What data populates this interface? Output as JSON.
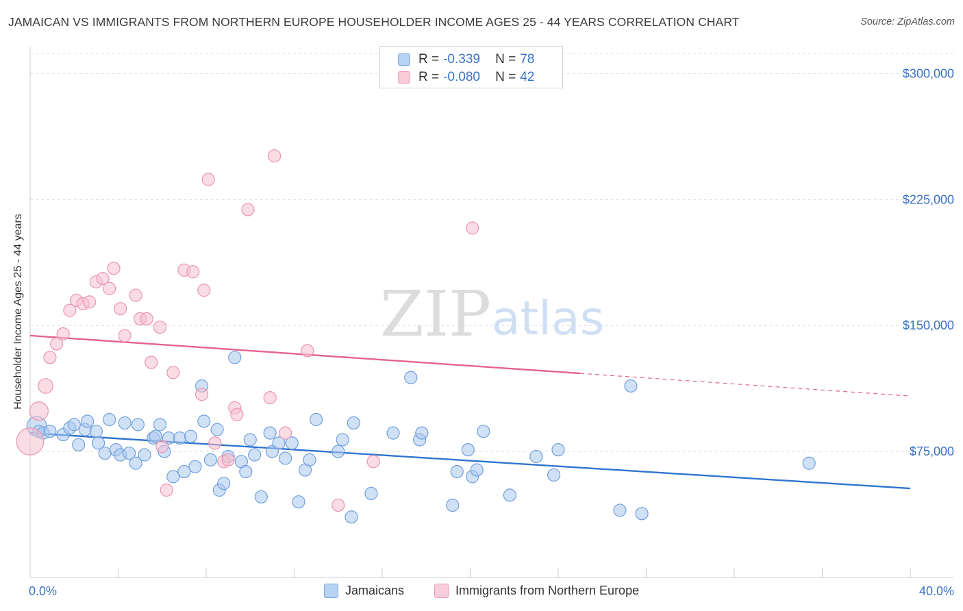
{
  "header": {
    "title": "JAMAICAN VS IMMIGRANTS FROM NORTHERN EUROPE HOUSEHOLDER INCOME AGES 25 - 44 YEARS CORRELATION CHART",
    "source": "Source: ZipAtlas.com"
  },
  "watermark": {
    "zip": "ZIP",
    "atlas": "atlas"
  },
  "legend": {
    "r_label": "R =",
    "n_label": "N =",
    "rows": [
      {
        "r": "-0.339",
        "n": "78"
      },
      {
        "r": "-0.080",
        "n": "42"
      }
    ]
  },
  "colors": {
    "blue_fill": "#a9c8ef",
    "blue_stroke": "#6f9fdc",
    "blue_line": "#2f74cf",
    "pink_fill": "#f6bfd0",
    "pink_stroke": "#eb94b0",
    "pink_line": "#e4638f",
    "axis_text": "#3a72c8"
  },
  "chart_data": {
    "type": "scatter",
    "title": "JAMAICAN VS IMMIGRANTS FROM NORTHERN EUROPE HOUSEHOLDER INCOME AGES 25 - 44 YEARS CORRELATION CHART",
    "xlabel": "",
    "ylabel": "Householder Income Ages 25 - 44 years",
    "xlim": [
      0,
      40
    ],
    "ylim": [
      0,
      312000
    ],
    "x_tick_labels": {
      "min": "0.0%",
      "max": "40.0%"
    },
    "y_ticks": [
      {
        "value": 75000,
        "label": "$75,000"
      },
      {
        "value": 150000,
        "label": "$150,000"
      },
      {
        "value": 225000,
        "label": "$225,000"
      },
      {
        "value": 300000,
        "label": "$300,000"
      }
    ],
    "series": [
      {
        "name": "Jamaicans",
        "r": -0.339,
        "n": 78,
        "trend": {
          "x0": 0,
          "y0": 86000,
          "x1": 40,
          "y1": 53000,
          "dashed_from": null
        },
        "points": [
          [
            0.3,
            90000,
            1.6
          ],
          [
            0.4,
            87000,
            1
          ],
          [
            0.6,
            86000,
            1
          ],
          [
            0.9,
            87000,
            1
          ],
          [
            1.5,
            85000,
            1
          ],
          [
            1.8,
            89000,
            1
          ],
          [
            2.0,
            91000,
            1
          ],
          [
            2.2,
            79000,
            1
          ],
          [
            2.5,
            88000,
            1
          ],
          [
            2.6,
            93000,
            1
          ],
          [
            3.0,
            87000,
            1
          ],
          [
            3.1,
            80000,
            1
          ],
          [
            3.4,
            74000,
            1
          ],
          [
            3.6,
            94000,
            1
          ],
          [
            3.9,
            76000,
            1
          ],
          [
            4.1,
            73000,
            1
          ],
          [
            4.3,
            92000,
            1
          ],
          [
            4.5,
            74000,
            1
          ],
          [
            4.8,
            68000,
            1
          ],
          [
            4.9,
            91000,
            1
          ],
          [
            5.2,
            73000,
            1
          ],
          [
            5.6,
            83000,
            1
          ],
          [
            5.7,
            84000,
            1
          ],
          [
            5.9,
            91000,
            1
          ],
          [
            6.1,
            75000,
            1
          ],
          [
            6.3,
            83000,
            1
          ],
          [
            6.5,
            60000,
            1
          ],
          [
            6.8,
            83000,
            1
          ],
          [
            7.0,
            63000,
            1
          ],
          [
            7.3,
            84000,
            1
          ],
          [
            7.5,
            66000,
            1
          ],
          [
            7.8,
            114000,
            1
          ],
          [
            7.9,
            93000,
            1
          ],
          [
            8.2,
            70000,
            1
          ],
          [
            8.5,
            88000,
            1
          ],
          [
            8.6,
            52000,
            1
          ],
          [
            8.8,
            56000,
            1
          ],
          [
            9.0,
            72000,
            1
          ],
          [
            9.3,
            131000,
            1
          ],
          [
            9.6,
            69000,
            1
          ],
          [
            9.8,
            63000,
            1
          ],
          [
            10.0,
            82000,
            1
          ],
          [
            10.2,
            73000,
            1
          ],
          [
            10.5,
            48000,
            1
          ],
          [
            10.9,
            86000,
            1
          ],
          [
            11.0,
            75000,
            1
          ],
          [
            11.3,
            80000,
            1
          ],
          [
            11.6,
            71000,
            1
          ],
          [
            11.9,
            80000,
            1
          ],
          [
            12.2,
            45000,
            1
          ],
          [
            12.5,
            64000,
            1
          ],
          [
            12.7,
            70000,
            1
          ],
          [
            13.0,
            94000,
            1
          ],
          [
            14.0,
            75000,
            1
          ],
          [
            14.2,
            82000,
            1
          ],
          [
            14.6,
            36000,
            1
          ],
          [
            14.7,
            92000,
            1
          ],
          [
            15.5,
            50000,
            1
          ],
          [
            16.5,
            86000,
            1
          ],
          [
            17.3,
            119000,
            1
          ],
          [
            17.7,
            82000,
            1
          ],
          [
            17.8,
            86000,
            1
          ],
          [
            19.2,
            43000,
            1
          ],
          [
            19.4,
            63000,
            1
          ],
          [
            19.9,
            76000,
            1
          ],
          [
            20.1,
            60000,
            1
          ],
          [
            20.3,
            64000,
            1
          ],
          [
            20.6,
            87000,
            1
          ],
          [
            21.8,
            49000,
            1
          ],
          [
            23.0,
            72000,
            1
          ],
          [
            23.8,
            61000,
            1
          ],
          [
            24.0,
            76000,
            1
          ],
          [
            26.8,
            40000,
            1
          ],
          [
            27.3,
            114000,
            1
          ],
          [
            27.8,
            38000,
            1
          ],
          [
            35.4,
            68000,
            1
          ]
        ]
      },
      {
        "name": "Immigrants from Northern Europe",
        "r": -0.08,
        "n": 42,
        "trend": {
          "x0": 0,
          "y0": 144000,
          "x1": 40,
          "y1": 108000,
          "dashed_from": 25
        },
        "points": [
          [
            0.0,
            81000,
            2.2
          ],
          [
            0.4,
            99000,
            1.5
          ],
          [
            0.7,
            114000,
            1.2
          ],
          [
            0.9,
            131000,
            1
          ],
          [
            1.2,
            139000,
            1
          ],
          [
            1.5,
            145000,
            1
          ],
          [
            1.8,
            159000,
            1
          ],
          [
            2.1,
            165000,
            1
          ],
          [
            2.4,
            163000,
            1
          ],
          [
            2.7,
            164000,
            1
          ],
          [
            3.0,
            176000,
            1
          ],
          [
            3.3,
            178000,
            1
          ],
          [
            3.6,
            172000,
            1
          ],
          [
            3.8,
            184000,
            1
          ],
          [
            4.1,
            160000,
            1
          ],
          [
            4.3,
            144000,
            1
          ],
          [
            4.8,
            168000,
            1
          ],
          [
            5.0,
            154000,
            1
          ],
          [
            5.3,
            154000,
            1
          ],
          [
            5.5,
            128000,
            1
          ],
          [
            5.9,
            149000,
            1
          ],
          [
            6.2,
            52000,
            1
          ],
          [
            6.5,
            122000,
            1
          ],
          [
            7.0,
            183000,
            1
          ],
          [
            7.4,
            182000,
            1
          ],
          [
            7.8,
            109000,
            1
          ],
          [
            7.9,
            171000,
            1
          ],
          [
            8.1,
            237000,
            1
          ],
          [
            8.4,
            80000,
            1
          ],
          [
            8.8,
            69000,
            1
          ],
          [
            9.0,
            70000,
            1
          ],
          [
            9.3,
            101000,
            1
          ],
          [
            9.4,
            97000,
            1
          ],
          [
            9.9,
            219000,
            1
          ],
          [
            10.9,
            107000,
            1
          ],
          [
            11.1,
            251000,
            1
          ],
          [
            11.6,
            86000,
            1
          ],
          [
            12.6,
            135000,
            1
          ],
          [
            14.0,
            43000,
            1
          ],
          [
            15.6,
            69000,
            1
          ],
          [
            20.1,
            208000,
            1
          ],
          [
            6.0,
            78000,
            1
          ]
        ]
      }
    ]
  },
  "bottom_legend": {
    "items": [
      "Jamaicans",
      "Immigrants from Northern Europe"
    ]
  }
}
